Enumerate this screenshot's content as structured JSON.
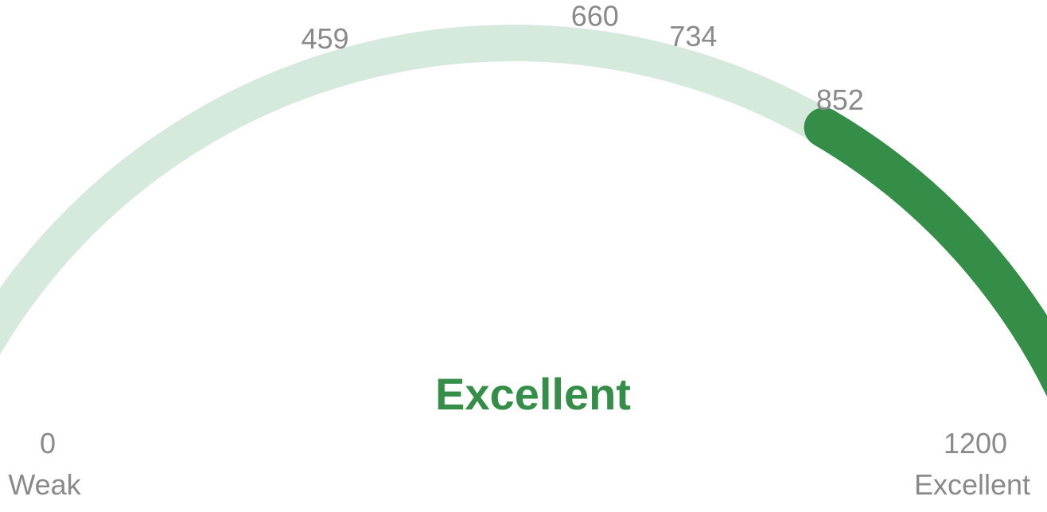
{
  "chart_data": {
    "type": "gauge",
    "min": 0,
    "max": 1200,
    "value": 852,
    "min_label": "0",
    "max_label": "1200",
    "min_caption": "Weak",
    "max_caption": "Excellent",
    "status_label": "Excellent",
    "ticks": [
      459,
      660,
      734,
      852
    ],
    "colors": {
      "track": "#d6e9dd",
      "fill": "#358e48",
      "status": "#358e48",
      "text": "#8a8a8a"
    }
  }
}
